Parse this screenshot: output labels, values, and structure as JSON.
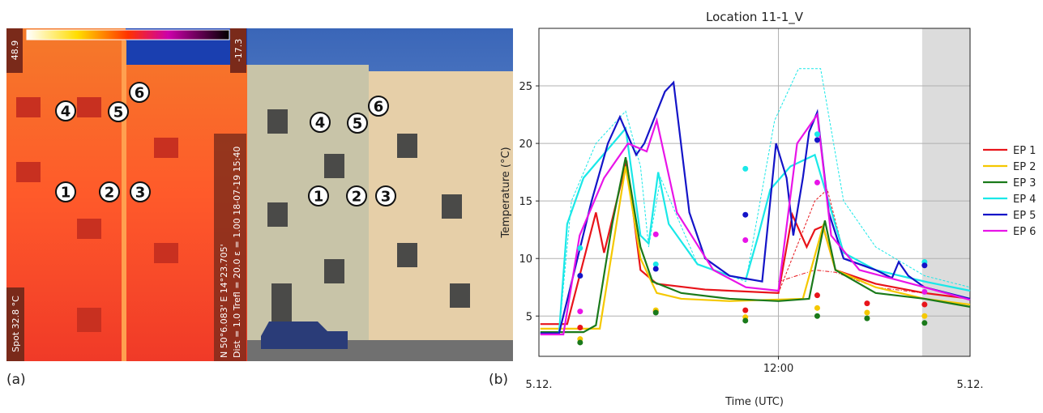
{
  "figure": {
    "panel_labels": [
      "(a)",
      "(b)"
    ],
    "markers": [
      "1",
      "2",
      "3",
      "4",
      "5",
      "6"
    ],
    "thermal": {
      "scale_max": "48.9",
      "scale_min": "-17.3",
      "spot": "Spot 32.8 °C",
      "gps": "N 50°6.083' E 14°23.705'",
      "info": "Dist = 1.0  Trefl = 20.0  ε = 1.00  18-07-19 15:40"
    }
  },
  "chart_data": {
    "type": "line",
    "title": "Location 11-1_V",
    "x_label": "Time (UTC)",
    "y_label": "Temperature (°C)",
    "xlim": [
      7,
      16
    ],
    "ylim": [
      1.5,
      30
    ],
    "xticks": [
      {
        "value": 12,
        "label": "12:00"
      }
    ],
    "x_date_labels": [
      "5.12.",
      "5.12."
    ],
    "yticks": [
      5,
      10,
      15,
      20,
      25
    ],
    "grid": true,
    "shaded_xrange": [
      15,
      16
    ],
    "legend": "outside-right",
    "series": [
      {
        "name": "EP 1",
        "color": "#e8141a",
        "x": [
          7.03,
          7.59,
          8.19,
          8.36,
          8.83,
          9.12,
          9.46,
          10.47,
          12,
          12.29,
          12.59,
          12.76,
          12.93,
          13.19,
          14.03,
          15.05,
          16
        ],
        "values": [
          4.3,
          4.3,
          14,
          10.5,
          18.5,
          9,
          7.8,
          7.3,
          7,
          13.8,
          11,
          12.5,
          12.8,
          9,
          7.8,
          7,
          6.5
        ],
        "points": {
          "x": [
            7.86,
            9.44,
            11.31,
            12.81,
            13.85,
            15.05
          ],
          "values": [
            4,
            5.4,
            5.5,
            6.8,
            6.1,
            6
          ]
        }
      },
      {
        "name": "EP 2",
        "color": "#f5c800",
        "x": [
          7.03,
          8.27,
          8.81,
          9.12,
          9.46,
          9.97,
          10.98,
          12.51,
          12.93,
          13.19,
          14.03,
          15.05,
          16
        ],
        "values": [
          3.9,
          3.9,
          18,
          10,
          7,
          6.5,
          6.3,
          6.5,
          12.8,
          9,
          7.5,
          6.5,
          6
        ],
        "points": {
          "x": [
            7.86,
            9.44,
            11.31,
            12.81,
            13.85,
            15.05
          ],
          "values": [
            3,
            5.5,
            4.9,
            5.7,
            5.3,
            5
          ]
        }
      },
      {
        "name": "EP 3",
        "color": "#1a7a1a",
        "x": [
          7.03,
          7.93,
          8.19,
          8.53,
          8.81,
          9.12,
          9.37,
          9.97,
          10.98,
          12,
          12.64,
          12.97,
          13.19,
          14.03,
          15.05,
          16
        ],
        "values": [
          3.6,
          3.6,
          4.2,
          13,
          18.8,
          11,
          8,
          7,
          6.5,
          6.3,
          6.5,
          13.3,
          9,
          7,
          6.5,
          5.8
        ],
        "points": {
          "x": [
            7.86,
            9.44,
            11.31,
            12.81,
            13.85,
            15.05
          ],
          "values": [
            2.7,
            5.3,
            4.6,
            5,
            4.8,
            4.4
          ]
        }
      },
      {
        "name": "EP 4",
        "color": "#1ae8e8",
        "x": [
          7.03,
          7.42,
          7.59,
          7.93,
          8.81,
          9.12,
          9.29,
          9.49,
          9.71,
          10.31,
          10.98,
          11.32,
          11.58,
          11.83,
          12.25,
          12.76,
          13.36,
          14.03,
          15.05,
          16
        ],
        "values": [
          3.5,
          3.5,
          13,
          17,
          21.3,
          12,
          11.3,
          17.5,
          13,
          9.5,
          8.5,
          8.2,
          12,
          16,
          18,
          19,
          10.5,
          9,
          8,
          7.2
        ],
        "points": {
          "x": [
            7.86,
            9.44,
            11.31,
            12.81,
            15.05
          ],
          "values": [
            10.9,
            9.5,
            17.8,
            20.8,
            9.7
          ]
        }
      },
      {
        "name": "EP 5",
        "color": "#1414c8",
        "x": [
          7.03,
          7.42,
          8.1,
          8.44,
          8.69,
          9.03,
          9.2,
          9.63,
          9.81,
          10.14,
          10.47,
          10.98,
          11.66,
          11.95,
          12.17,
          12.31,
          12.51,
          12.64,
          12.81,
          13.05,
          13.36,
          14.03,
          14.37,
          14.51,
          14.71,
          15.05,
          16
        ],
        "values": [
          3.5,
          3.5,
          15,
          20,
          22.3,
          19,
          20,
          24.5,
          25.3,
          14,
          10,
          8.5,
          8,
          20,
          17,
          12,
          17,
          21,
          22.7,
          14,
          10,
          9,
          8.3,
          9.7,
          8.5,
          7.5,
          6.5
        ],
        "points": {
          "x": [
            7.86,
            9.44,
            11.31,
            12.81,
            15.05
          ],
          "values": [
            8.5,
            9.1,
            13.8,
            20.3,
            9.4
          ]
        }
      },
      {
        "name": "EP 6",
        "color": "#e814e8",
        "x": [
          7.03,
          7.51,
          7.85,
          8.36,
          8.86,
          9.25,
          9.46,
          9.88,
          10.64,
          11.32,
          12,
          12.39,
          12.81,
          13.1,
          13.69,
          15.05,
          16
        ],
        "values": [
          3.4,
          3.4,
          12,
          17,
          20,
          19.3,
          22,
          14,
          9,
          7.5,
          7.2,
          20,
          22.5,
          12,
          9,
          7.5,
          6.4
        ],
        "points": {
          "x": [
            7.86,
            9.44,
            11.31,
            12.81,
            15.05
          ],
          "values": [
            5.4,
            12.1,
            11.6,
            16.6,
            7.1
          ]
        }
      }
    ],
    "extra_lines": [
      {
        "color": "#1ae8e8",
        "dash": "3 2",
        "x": [
          7.42,
          7.68,
          8.19,
          8.81,
          9.12,
          9.29,
          9.54,
          10.31,
          11.32,
          11.92,
          12.42,
          12.88,
          13.36,
          14.03,
          15.05,
          16
        ],
        "values": [
          3.5,
          15,
          20,
          22.8,
          18,
          11,
          17,
          9.5,
          8,
          22,
          26.5,
          26.5,
          15,
          11,
          8.5,
          7.5
        ]
      },
      {
        "color": "#e8141a",
        "dash": "3 2",
        "x": [
          12,
          12.76,
          13.02,
          13.36
        ],
        "values": [
          7,
          15,
          16,
          10.5
        ]
      },
      {
        "color": "#e8141a",
        "dash": "5 2 1 2",
        "x": [
          12,
          12.76,
          13.19,
          14.03,
          16
        ],
        "values": [
          8,
          9,
          8.8,
          7.5,
          6.5
        ]
      }
    ]
  }
}
